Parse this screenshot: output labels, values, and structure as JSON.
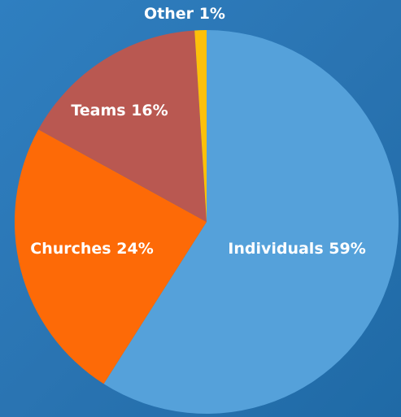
{
  "chart_data": {
    "type": "pie",
    "categories": [
      "Individuals",
      "Churches",
      "Teams",
      "Other"
    ],
    "values": [
      59,
      24,
      16,
      1
    ],
    "value_labels": [
      "59%",
      "24%",
      "16%",
      "1%"
    ],
    "colors": [
      "#55a1da",
      "#fd6a07",
      "#b95851",
      "#fdc00a"
    ]
  }
}
